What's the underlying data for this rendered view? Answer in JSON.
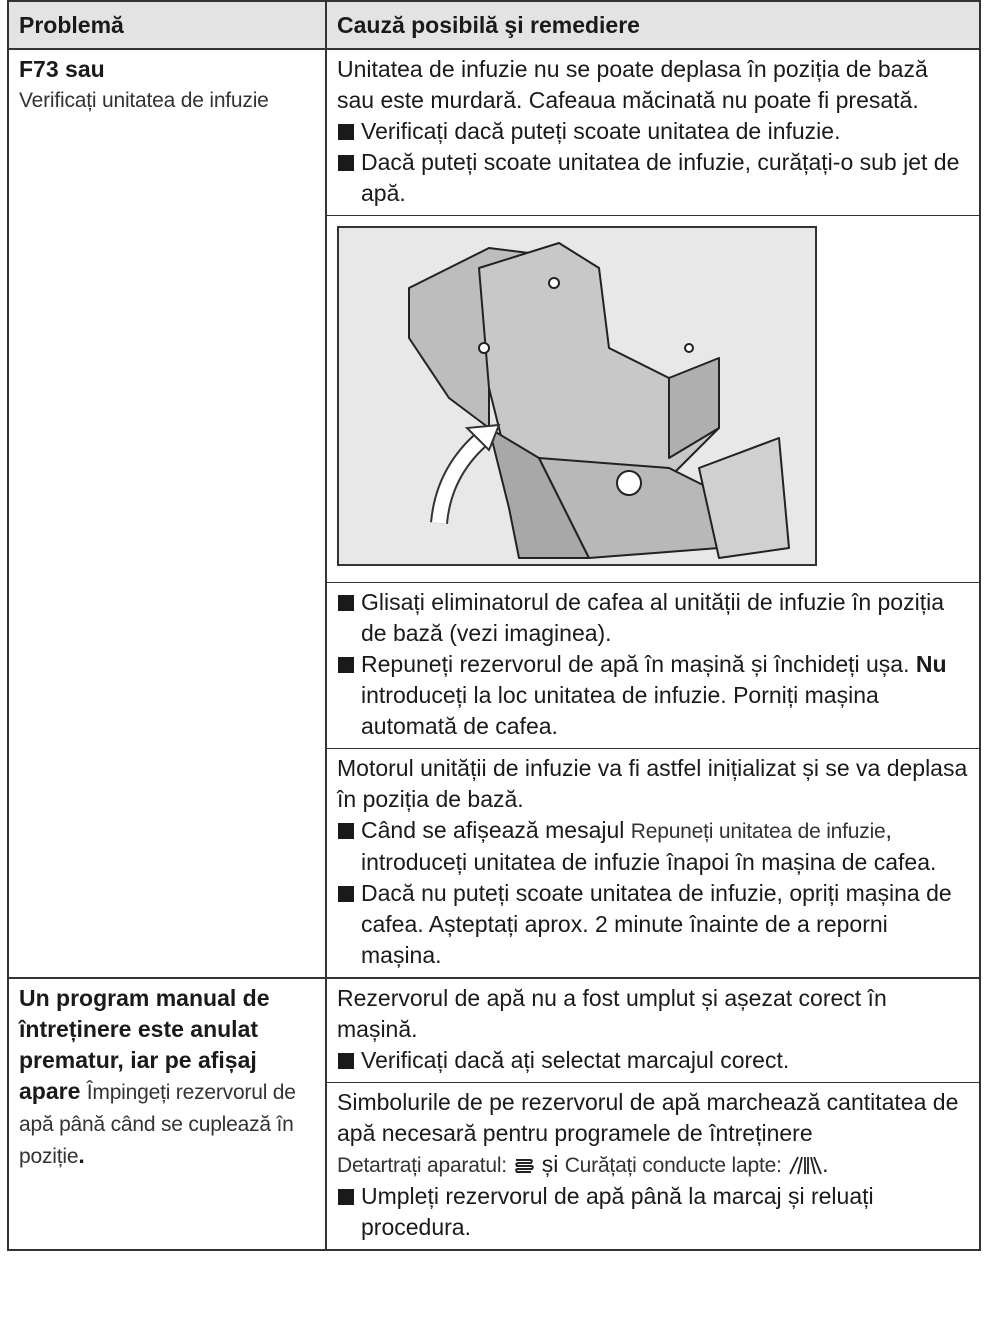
{
  "table": {
    "header": [
      "Problemă",
      "Cauză posibilă şi remediere"
    ],
    "rows": [
      {
        "problem": {
          "code": "F73 sau",
          "message": "Verificați unitatea de infuzie"
        },
        "cause": {
          "intro": "Unitatea de infuzie nu se poate deplasa în poziția de bază sau este murdară. Cafeaua măcinată nu poate fi presată.",
          "steps_1": [
            "Verificați dacă puteți scoate unitatea de infuzie.",
            "Dacă puteți scoate unitatea de infuzie, curățați-o sub jet de apă."
          ],
          "steps_2": [
            "Glisați eliminatorul de cafea al unității de infuzie în poziția de bază (vezi imaginea).",
            [
              "Repuneți rezervorul de apă în mașină și închideți ușa.",
              "Nu",
              "introduceți la loc unitatea de infuzie. Porniți mașina automată de cafea."
            ]
          ],
          "note": "Motorul unității de infuzie va fi astfel inițializat și se va deplasa în poziția de bază.",
          "steps_3": [
            [
              "Când se afișează mesajul",
              "Repuneți unitatea de infuzie",
              ", introduceți unitatea de infuzie înapoi în mașina de cafea."
            ],
            "Dacă nu puteți scoate unitatea de infuzie, opriți ma­șina de cafea. Așteptați aprox. 2 minute înainte de a reporni mașina."
          ]
        }
      },
      {
        "problem": {
          "lead": "Un program manual de întreținere este anulat prematur, iar pe afișaj apare",
          "message": "Împingeți rezervorul de apă până când se cu­plează în poziție",
          "end": "."
        },
        "cause": {
          "intro": "Rezervorul de apă nu a fost umplut și așezat corect în mașină.",
          "steps_1": [
            "Verificați dacă ați selectat marcajul corect."
          ],
          "note": "Simbolurile de pe rezervorul de apă marchează canti­tatea de apă necesară pentru programele de întreține­re",
          "symbols": [
            "Detartrați aparatul:",
            "și",
            "Curățați conducte lapte:",
            "."
          ],
          "steps_2": [
            "Umpleți rezervorul de apă până la marcaj și reluați procedura."
          ]
        }
      }
    ]
  }
}
